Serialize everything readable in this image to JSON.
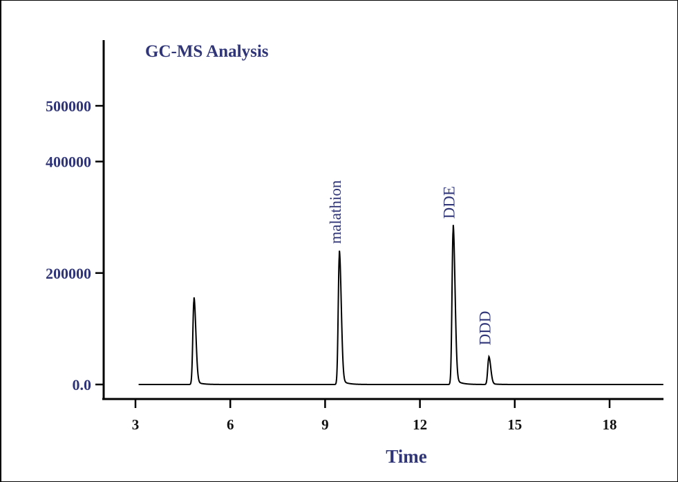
{
  "chart_data": {
    "type": "line",
    "title": "GC-MS Analysis",
    "xlabel": "Time",
    "ylabel": "",
    "xlim": [
      2,
      19.7
    ],
    "ylim": [
      -25000,
      580000
    ],
    "x_ticks": [
      3,
      6,
      9,
      12,
      15,
      18
    ],
    "x_tick_labels": [
      "3",
      "6",
      "9",
      "12",
      "15",
      "18"
    ],
    "y_ticks": [
      0,
      200000,
      400000,
      500000
    ],
    "y_tick_labels": [
      "0.0",
      "200000",
      "400000",
      "500000"
    ],
    "grid": false,
    "legend": "none",
    "line_color": "#000000",
    "text_color": "#2f3577",
    "baseline_start": 3.1,
    "baseline_end": 19.7,
    "series": [
      {
        "peaks": [
          {
            "x": 4.85,
            "y": 150000,
            "label": ""
          },
          {
            "x": 9.45,
            "y": 230000,
            "label": "malathion"
          },
          {
            "x": 13.05,
            "y": 275000,
            "label": "DDE"
          },
          {
            "x": 14.18,
            "y": 48000,
            "label": "DDD"
          }
        ]
      }
    ]
  }
}
